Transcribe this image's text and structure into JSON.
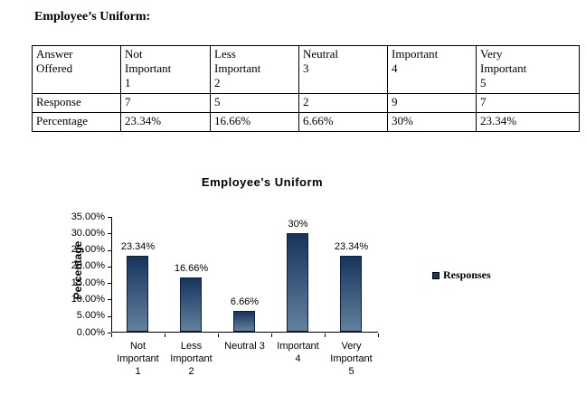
{
  "document": {
    "heading": "Employee’s Uniform:"
  },
  "table": {
    "columns": [
      "Answer\nOffered",
      "Not\nImportant\n1",
      "Less\nImportant\n2",
      "Neutral\n3",
      "Important\n4",
      "Very\nImportant\n5"
    ],
    "rows": [
      {
        "label": "Response",
        "values": [
          "7",
          "5",
          "2",
          "9",
          "7"
        ]
      },
      {
        "label": "Percentage",
        "values": [
          "23.34%",
          "16.66%",
          "6.66%",
          "30%",
          "23.34%"
        ]
      }
    ]
  },
  "chart_data": {
    "type": "bar",
    "title": "Employee's Uniform",
    "xlabel": "",
    "ylabel": "Percentage",
    "categories": [
      "Not Important 1",
      "Less Important 2",
      "Neutral 3",
      "Important 4",
      "Very Important 5"
    ],
    "xtick_labels": [
      "Not\nImportant\n1",
      "Less\nImportant\n2",
      "Neutral 3",
      "Important\n4",
      "Very\nImportant\n5"
    ],
    "series": [
      {
        "name": "Responses",
        "values": [
          23.34,
          16.66,
          6.66,
          30,
          23.34
        ]
      }
    ],
    "data_labels": [
      "23.34%",
      "16.66%",
      "6.66%",
      "30%",
      "23.34%"
    ],
    "ylim": [
      0,
      35
    ],
    "ytick_step": 5,
    "ytick_labels": [
      "0.00%",
      "5.00%",
      "10.00%",
      "15.00%",
      "20.00%",
      "25.00%",
      "30.00%",
      "35.00%"
    ],
    "grid": false,
    "legend_position": "right",
    "colors": {
      "bar_gradient_top": "#16345c",
      "bar_gradient_bottom": "#64809f",
      "bar_border": "#0b1f3c",
      "legend_square": "#1c3864",
      "axis": "#000000",
      "text": "#000000",
      "background": "#ffffff"
    }
  }
}
